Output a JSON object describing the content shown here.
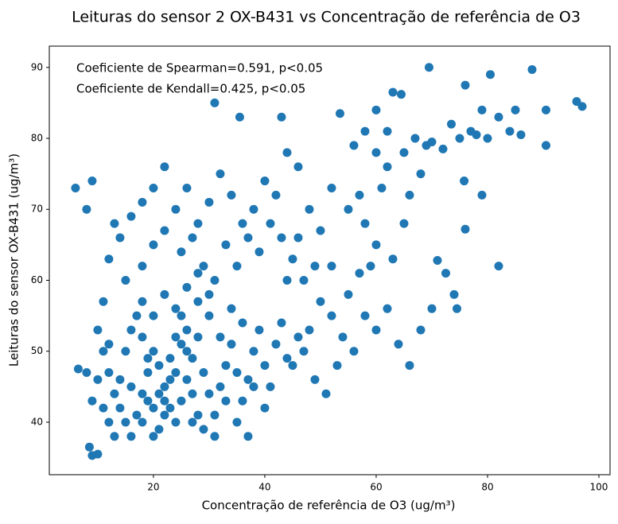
{
  "chart_data": {
    "type": "scatter",
    "title": "Leituras do sensor 2 OX-B431 vs Concentração de referência de O3",
    "x_label": "Concentração de referência de O3 (ug/m³)",
    "y_label": "Leituras do sensor OX-B431 (ug/m³)",
    "annotations": [
      "Coeficiente de Spearman=0.591, p<0.05",
      "Coeficiente de Kendall=0.425, p<0.05"
    ],
    "color": "#1f77b4",
    "xlim": [
      1.3,
      102
    ],
    "ylim": [
      32.6,
      93
    ],
    "xticks": [
      20,
      40,
      60,
      80,
      100
    ],
    "yticks": [
      40,
      50,
      60,
      70,
      80,
      90
    ],
    "x": [
      6,
      8,
      9,
      6.5,
      8,
      8.5,
      9,
      10,
      97,
      96,
      90.5,
      90.5,
      88,
      82,
      69.5,
      80.5,
      76,
      31,
      35.5,
      43,
      66,
      74.5,
      70,
      68,
      74,
      71,
      72.5,
      76,
      79,
      75.8,
      53.5,
      60,
      63,
      64.5,
      62,
      65,
      67,
      69,
      72,
      78,
      80,
      82,
      84,
      85,
      86,
      79,
      77,
      75,
      73.5,
      70,
      58,
      56,
      60,
      62,
      61,
      57,
      55,
      58,
      60,
      63,
      65,
      66,
      68,
      59,
      57,
      55,
      58,
      60,
      62,
      64,
      56,
      54,
      52,
      50,
      48,
      47,
      45,
      49,
      51,
      53,
      40,
      42,
      44,
      46,
      48,
      50,
      52,
      38,
      36,
      34,
      32,
      30,
      28,
      26,
      24,
      22,
      20,
      18,
      16,
      14,
      13,
      12,
      11,
      15,
      18,
      20,
      22,
      25,
      27,
      29,
      31,
      33,
      35,
      37,
      39,
      41,
      43,
      45,
      47,
      49,
      10,
      11,
      12,
      13,
      14,
      15,
      16,
      17,
      18,
      19,
      20,
      21,
      22,
      23,
      24,
      25,
      26,
      27,
      28,
      29,
      30,
      31,
      32,
      33,
      34,
      35,
      36,
      37,
      38,
      39,
      40,
      41,
      42,
      43,
      44,
      46,
      15,
      16,
      17,
      18,
      19,
      20,
      21,
      22,
      23,
      24,
      25,
      26,
      27,
      28,
      14,
      16,
      18,
      20,
      22,
      24,
      26,
      28,
      30,
      32,
      34,
      36,
      38,
      40,
      12,
      13,
      11,
      9,
      10,
      12,
      19,
      21,
      23,
      25,
      27,
      29,
      31,
      33,
      35,
      37,
      18,
      20,
      22,
      24,
      26,
      28,
      30,
      44,
      46,
      52
    ],
    "y": [
      73,
      70,
      74,
      47.5,
      47,
      36.5,
      35.3,
      35.5,
      84.5,
      85.2,
      79,
      84,
      89.7,
      62,
      90,
      89,
      87.5,
      85,
      83,
      83,
      48,
      56,
      56,
      53,
      58,
      62.8,
      61,
      67.2,
      72,
      74,
      83.5,
      84,
      86.5,
      86.2,
      81,
      78,
      80,
      79,
      78.5,
      80.5,
      80,
      83,
      81,
      84,
      80.5,
      84,
      81,
      80,
      82,
      79.5,
      81,
      79,
      78,
      76,
      73,
      72,
      70,
      68,
      65,
      63,
      68,
      72,
      75,
      62,
      61,
      58,
      55,
      53,
      56,
      51,
      50,
      52,
      55,
      57,
      53,
      50,
      48,
      46,
      44,
      48,
      74,
      72,
      78,
      76,
      70,
      67,
      73,
      70,
      68,
      72,
      75,
      71,
      68,
      73,
      70,
      76,
      73,
      71,
      69,
      66,
      68,
      63,
      57,
      60,
      62,
      65,
      67,
      64,
      66,
      62,
      60,
      65,
      62,
      66,
      64,
      68,
      66,
      63,
      60,
      62,
      53,
      50,
      47,
      44,
      42,
      40,
      38,
      41,
      44,
      47,
      50,
      48,
      45,
      42,
      40,
      43,
      46,
      49,
      52,
      47,
      44,
      41,
      45,
      48,
      51,
      47,
      43,
      46,
      50,
      53,
      48,
      45,
      51,
      54,
      49,
      52,
      50,
      53,
      55,
      52,
      49,
      42,
      39,
      41,
      46,
      52,
      55,
      50,
      44,
      41,
      46,
      45,
      40,
      38,
      43,
      47,
      53,
      57,
      55,
      52,
      56,
      54,
      45,
      42,
      40,
      38,
      42,
      43,
      46,
      51,
      43,
      44,
      49,
      51,
      40,
      39,
      38,
      43,
      40,
      38,
      57,
      55,
      58,
      56,
      59,
      61,
      58,
      60,
      66,
      62
    ]
  }
}
